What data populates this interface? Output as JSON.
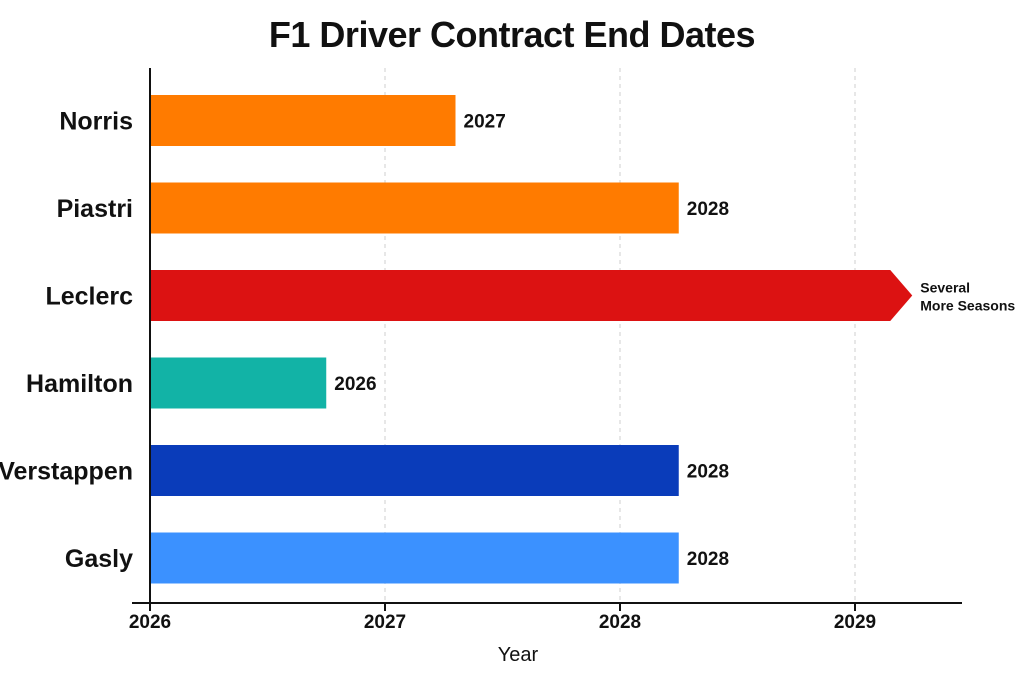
{
  "chart_data": {
    "type": "bar",
    "orientation": "horizontal",
    "title": "F1 Driver Contract End Dates",
    "xlabel": "Year",
    "ylabel": "",
    "xlim": [
      2026,
      2029.45
    ],
    "x_ticks": [
      "2026",
      "2027",
      "2028",
      "2029"
    ],
    "grid": "vertical dashed",
    "categories": [
      "Norris",
      "Piastri",
      "Leclerc",
      "Hamilton",
      "Verstappen",
      "Gasly"
    ],
    "bars": [
      {
        "driver": "Norris",
        "value": 2027.3,
        "label": "2027",
        "color": "#ff7b00"
      },
      {
        "driver": "Piastri",
        "value": 2028.25,
        "label": "2028",
        "color": "#ff7b00"
      },
      {
        "driver": "Leclerc",
        "value": 2029.15,
        "label": "Several More Seasons",
        "label_lines": [
          "Several",
          "More Seasons"
        ],
        "open_ended": true,
        "color": "#dc1212"
      },
      {
        "driver": "Hamilton",
        "value": 2026.75,
        "label": "2026",
        "color": "#12b3a6"
      },
      {
        "driver": "Verstappen",
        "value": 2028.25,
        "label": "2028",
        "color": "#0a3cba"
      },
      {
        "driver": "Gasly",
        "value": 2028.25,
        "label": "2028",
        "color": "#3b91ff"
      }
    ]
  }
}
